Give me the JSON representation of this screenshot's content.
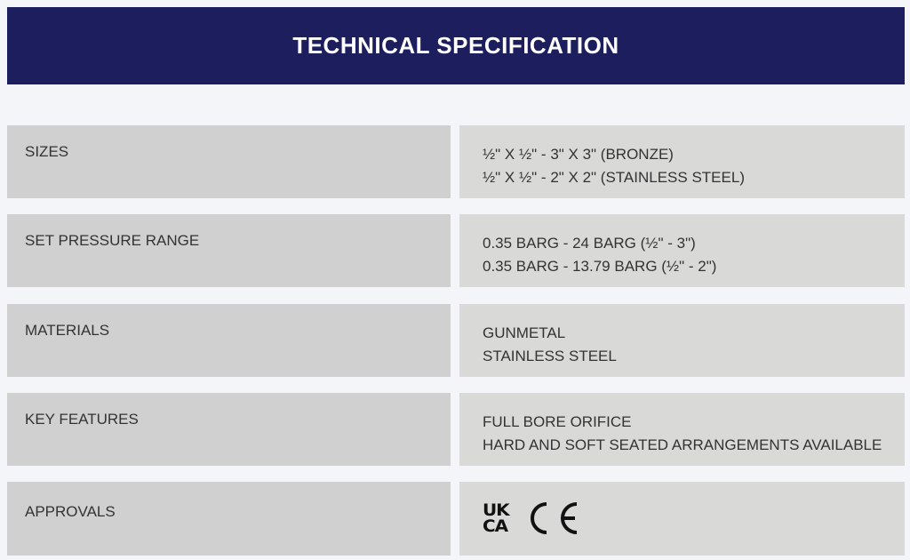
{
  "title": "TECHNICAL SPECIFICATION",
  "rows": [
    {
      "label": "SIZES",
      "values": [
        "½\" X ½\" - 3\" X 3\" (BRONZE)",
        "½\" X ½\" - 2\" X 2\" (STAINLESS STEEL)"
      ]
    },
    {
      "label": "SET PRESSURE RANGE",
      "values": [
        "0.35 BARG - 24 BARG (½\" - 3\")",
        "0.35 BARG - 13.79 BARG (½\" - 2\")"
      ]
    },
    {
      "label": "MATERIALS",
      "values": [
        "GUNMETAL",
        "STAINLESS STEEL"
      ]
    },
    {
      "label": "KEY FEATURES",
      "values": [
        "FULL BORE ORIFICE",
        "HARD AND SOFT SEATED ARRANGEMENTS AVAILABLE"
      ]
    },
    {
      "label": "APPROVALS",
      "marks": [
        "UKCA",
        "CE"
      ]
    }
  ],
  "colors": {
    "header": "#1d1e5e",
    "label_cell": "#d0d0d0",
    "value_cell": "#d9d9d7",
    "background": "#f3f5f8"
  }
}
